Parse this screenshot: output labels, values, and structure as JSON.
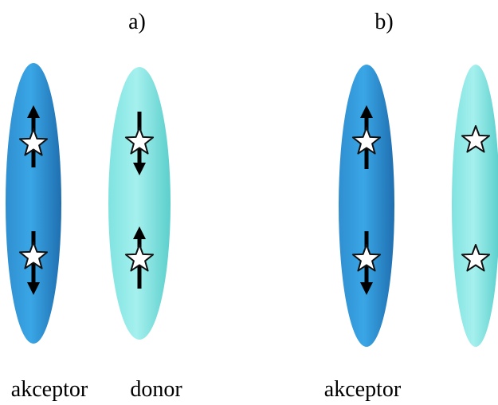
{
  "panels": [
    {
      "label": "a)",
      "molecules": [
        {
          "label": "akceptor"
        },
        {
          "label": "donor"
        }
      ]
    },
    {
      "label": "b)",
      "molecules": [
        {
          "label": "akceptor"
        }
      ]
    }
  ]
}
